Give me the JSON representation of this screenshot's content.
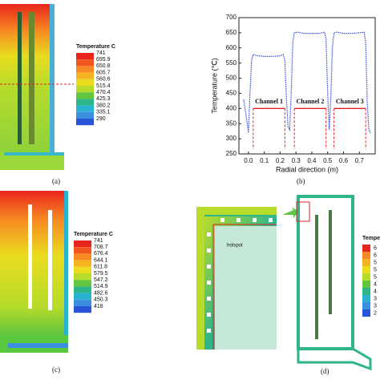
{
  "panels": {
    "a": {
      "label": "(a)",
      "legend": {
        "title": "Temperature C",
        "labels": [
          "741",
          "695.9",
          "650.8",
          "605.7",
          "560.6",
          "515.4",
          "470.4",
          "425.3",
          "380.2",
          "335.1",
          "290"
        ],
        "colors": [
          "#e8251c",
          "#f2561e",
          "#f78a22",
          "#f5b41f",
          "#e9dc1e",
          "#b7dc2a",
          "#62c63e",
          "#2fb58a",
          "#2ab3d0",
          "#3a8fe0",
          "#2a55d8"
        ]
      }
    },
    "c": {
      "label": "(c)",
      "legend": {
        "title": "Temperature C",
        "labels": [
          "741",
          "708.7",
          "676.4",
          "644.1",
          "611.8",
          "579.5",
          "547.2",
          "514.9",
          "482.6",
          "450.3",
          "418"
        ],
        "colors": [
          "#e8251c",
          "#f2561e",
          "#f78a22",
          "#f5b41f",
          "#e9dc1e",
          "#b7dc2a",
          "#62c63e",
          "#2fb58a",
          "#2ab3d0",
          "#3a8fe0",
          "#2a55d8"
        ]
      }
    },
    "d": {
      "label": "(d)",
      "hotspot": "hotspot",
      "legend": {
        "title": "Tempe",
        "labels": [
          "6",
          "6",
          "5",
          "5",
          "5",
          "4",
          "4",
          "3",
          "3",
          "2"
        ],
        "colors": [
          "#e8251c",
          "#f78a22",
          "#f5b41f",
          "#e9dc1e",
          "#b7dc2a",
          "#62c63e",
          "#2fb58a",
          "#2ab3d0",
          "#3a8fe0",
          "#2a55d8"
        ]
      }
    }
  },
  "chart_data": {
    "type": "line",
    "label": "(b)",
    "x_label": "Radial direction (m)",
    "y_label": "Temperature (℃)",
    "annotations": [
      "Channel 1",
      "Channel 2",
      "Channel 3"
    ],
    "xlim": [
      -0.06,
      0.8
    ],
    "ylim": [
      250,
      700
    ],
    "xticks": [
      {
        "value": 0,
        "label": "0.0"
      },
      0.1,
      0.2,
      0.3,
      0.4,
      0.5,
      0.6,
      0.7
    ],
    "yticks": [
      250,
      300,
      350,
      400,
      450,
      500,
      550,
      600,
      650,
      700
    ],
    "series": [
      {
        "color": "#3b4fd8",
        "dash": "dotted",
        "x": [
          -0.03,
          -0.01,
          0.0,
          0.01,
          0.02,
          0.03,
          0.05,
          0.1,
          0.15,
          0.2,
          0.22,
          0.23,
          0.24,
          0.25,
          0.26,
          0.27,
          0.28,
          0.29,
          0.31,
          0.35,
          0.4,
          0.45,
          0.48,
          0.49,
          0.5,
          0.51,
          0.52,
          0.53,
          0.54,
          0.56,
          0.6,
          0.65,
          0.7,
          0.73,
          0.74,
          0.75,
          0.76,
          0.77
        ],
        "values": [
          430,
          360,
          320,
          450,
          560,
          578,
          575,
          572,
          572,
          574,
          578,
          560,
          430,
          340,
          330,
          450,
          620,
          650,
          652,
          648,
          648,
          648,
          652,
          630,
          450,
          330,
          440,
          600,
          650,
          652,
          648,
          648,
          650,
          652,
          620,
          420,
          330,
          320
        ]
      },
      {
        "color": "#e0202a",
        "dash": "solid",
        "x": [
          0.03,
          0.23,
          0.26,
          0.29,
          0.49,
          0.515,
          0.54,
          0.74
        ],
        "values": [
          400,
          400,
          null,
          400,
          400,
          null,
          400,
          400
        ]
      }
    ]
  }
}
